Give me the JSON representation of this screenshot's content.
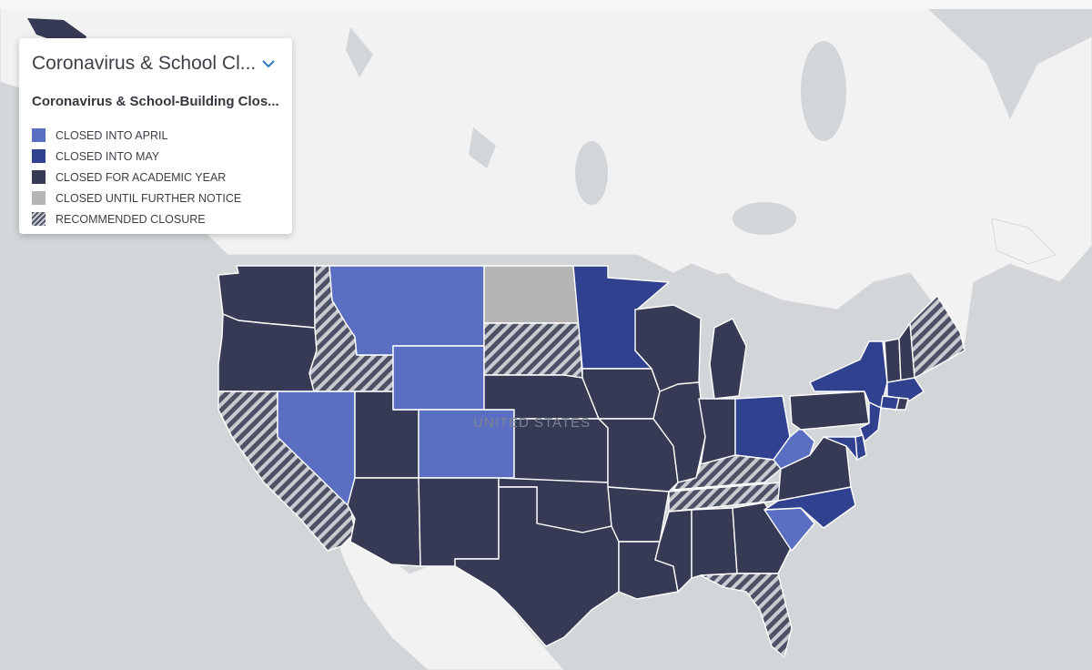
{
  "legend": {
    "title": "Coronavirus & School Cl...",
    "subtitle": "Coronavirus & School-Building Clos...",
    "toggle_icon": "chevron-down-icon",
    "items": [
      {
        "label": "CLOSED INTO APRIL",
        "color": "#5a6fc2",
        "pattern": "solid"
      },
      {
        "label": "CLOSED INTO MAY",
        "color": "#30418f",
        "pattern": "solid"
      },
      {
        "label": "CLOSED FOR ACADEMIC YEAR",
        "color": "#373a55",
        "pattern": "solid"
      },
      {
        "label": "CLOSED UNTIL FURTHER NOTICE",
        "color": "#b5b5b5",
        "pattern": "solid"
      },
      {
        "label": "RECOMMENDED CLOSURE",
        "color": "#4d5165",
        "pattern": "hatched"
      }
    ]
  },
  "map": {
    "country_label": "UNITED STATES",
    "land_color": "#f2f2f2",
    "water_color": "#d2d6d9"
  },
  "states": {
    "WA": "closed-for-academic-year",
    "OR": "closed-for-academic-year",
    "CA": "recommended-closure",
    "ID": "recommended-closure",
    "NV": "closed-into-april",
    "UT": "closed-for-academic-year",
    "AZ": "closed-for-academic-year",
    "MT": "closed-into-april",
    "WY": "closed-into-april",
    "CO": "closed-into-april",
    "NM": "closed-for-academic-year",
    "ND": "closed-until-further-notice",
    "SD": "recommended-closure",
    "NE": "closed-for-academic-year",
    "KS": "closed-for-academic-year",
    "OK": "closed-for-academic-year",
    "TX": "closed-for-academic-year",
    "MN": "closed-into-may",
    "IA": "closed-for-academic-year",
    "MO": "closed-for-academic-year",
    "AR": "closed-for-academic-year",
    "LA": "closed-for-academic-year",
    "WI": "closed-for-academic-year",
    "IL": "closed-for-academic-year",
    "MI": "closed-for-academic-year",
    "IN": "closed-for-academic-year",
    "OH": "closed-into-may",
    "KY": "recommended-closure",
    "TN": "recommended-closure",
    "MS": "closed-for-academic-year",
    "AL": "closed-for-academic-year",
    "GA": "closed-for-academic-year",
    "FL": "recommended-closure",
    "SC": "closed-into-april",
    "NC": "closed-into-may",
    "VA": "closed-for-academic-year",
    "WV": "closed-into-april",
    "PA": "closed-for-academic-year",
    "NY": "closed-into-may",
    "VT": "closed-for-academic-year",
    "NH": "closed-for-academic-year",
    "ME": "recommended-closure",
    "MA": "closed-into-may",
    "RI": "closed-for-academic-year",
    "CT": "closed-into-may",
    "NJ": "closed-into-may",
    "DE": "closed-into-may",
    "MD": "closed-into-may"
  }
}
